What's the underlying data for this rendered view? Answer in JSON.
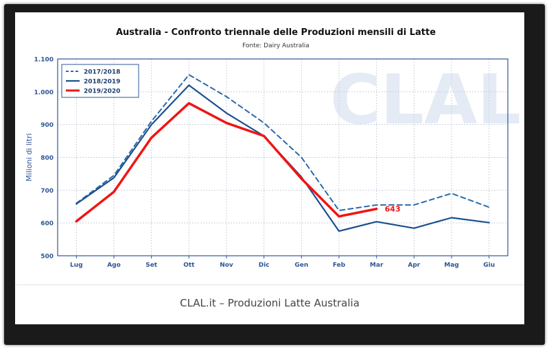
{
  "caption": "CLAL.it – Produzioni Latte Australia",
  "watermark": "CLAL",
  "colors": {
    "series_2017": "#2a6aa8",
    "series_2018": "#1a4f8f",
    "series_2019": "#f01414",
    "axis_text": "#2f5597",
    "grid": "#c8d1de",
    "plot_border": "#2f5597",
    "watermark": "#e4ebf5"
  },
  "chart_data": {
    "type": "line",
    "title": "Australia - Confronto triennale delle Produzioni mensili di Latte",
    "subtitle": "Fonte: Dairy Australia",
    "ylabel": "Milioni di litri",
    "xlabel": "",
    "categories": [
      "Lug",
      "Ago",
      "Set",
      "Ott",
      "Nov",
      "Dic",
      "Gen",
      "Feb",
      "Mar",
      "Apr",
      "Mag",
      "Giu"
    ],
    "ylim": [
      500,
      1100
    ],
    "yticks": [
      500,
      600,
      700,
      800,
      900,
      1000,
      1100
    ],
    "ytick_labels": [
      "500",
      "600",
      "700",
      "800",
      "900",
      "1.000",
      "1.100"
    ],
    "grid": true,
    "legend_position": "top-left",
    "series": [
      {
        "name": "2017/2018",
        "style": "dashed",
        "values": [
          660,
          745,
          910,
          1052,
          985,
          905,
          800,
          638,
          655,
          655,
          690,
          648
        ]
      },
      {
        "name": "2018/2019",
        "style": "solid",
        "values": [
          658,
          738,
          900,
          1020,
          935,
          865,
          740,
          575,
          604,
          584,
          616,
          601
        ]
      },
      {
        "name": "2019/2020",
        "style": "bold",
        "values": [
          605,
          695,
          860,
          965,
          905,
          865,
          735,
          620,
          643,
          null,
          null,
          null
        ]
      }
    ],
    "annotations": [
      {
        "series": "2019/2020",
        "category": "Mar",
        "label": "643"
      }
    ]
  }
}
